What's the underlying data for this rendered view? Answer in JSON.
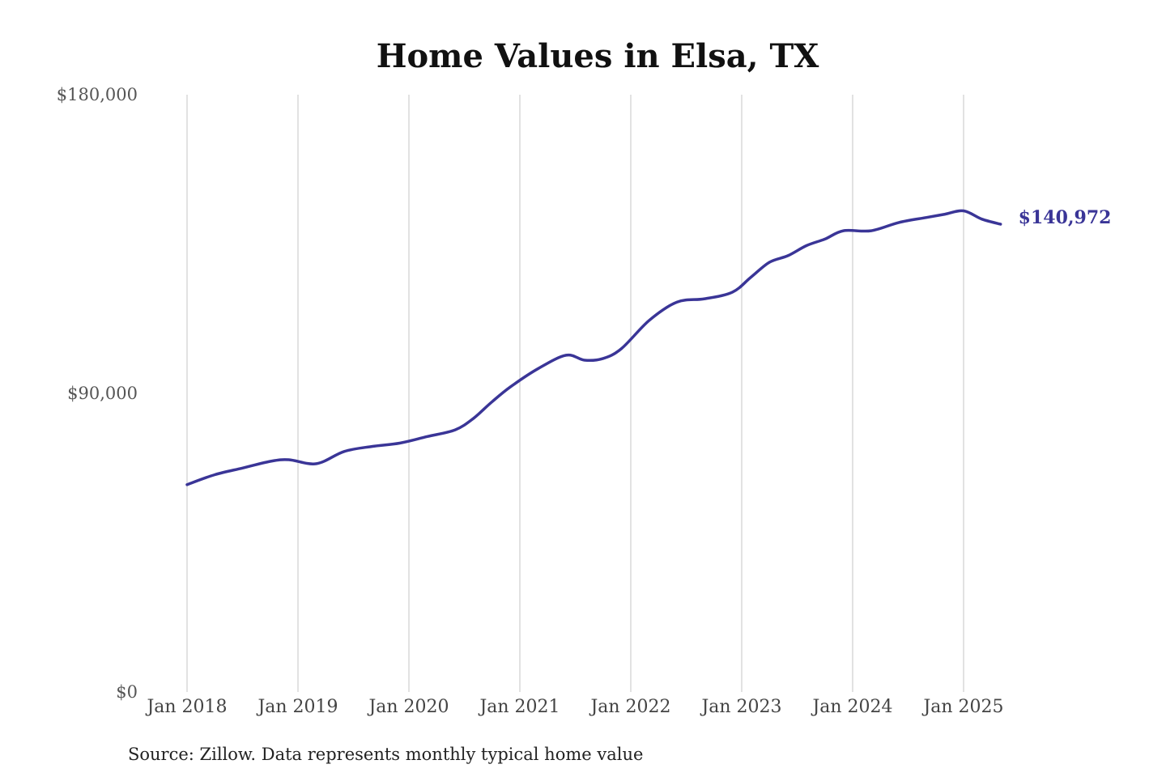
{
  "chart_data": {
    "type": "line",
    "title": "Home Values in Elsa, TX",
    "xlabel": "",
    "ylabel": "",
    "ylim": [
      0,
      180000
    ],
    "ytick_values": [
      0,
      90000,
      180000
    ],
    "ytick_labels": [
      "$0",
      "$90,000",
      "$180,000"
    ],
    "xtick_values": [
      "2018-01",
      "2019-01",
      "2020-01",
      "2021-01",
      "2022-01",
      "2023-01",
      "2024-01",
      "2025-01"
    ],
    "xtick_labels": [
      "Jan 2018",
      "Jan 2019",
      "Jan 2020",
      "Jan 2021",
      "Jan 2022",
      "Jan 2023",
      "Jan 2024",
      "Jan 2025"
    ],
    "grid": "vertical",
    "line_color": "#3a3597",
    "end_label": "$140,972",
    "source": "Source: Zillow. Data represents monthly typical home value",
    "series": [
      {
        "x": [
          "2018-01",
          "2018-04",
          "2018-07",
          "2018-10",
          "2018-12",
          "2019-03",
          "2019-06",
          "2019-09",
          "2019-12",
          "2020-03",
          "2020-06",
          "2020-08",
          "2020-10",
          "2020-12",
          "2021-03",
          "2021-06",
          "2021-08",
          "2021-10",
          "2021-12",
          "2022-03",
          "2022-06",
          "2022-09",
          "2022-12",
          "2023-02",
          "2023-04",
          "2023-06",
          "2023-08",
          "2023-10",
          "2023-12",
          "2024-03",
          "2024-06",
          "2024-09",
          "2024-11",
          "2025-01",
          "2025-03",
          "2025-05"
        ],
        "values": [
          62500,
          65500,
          67500,
          69500,
          70000,
          68800,
          72500,
          74000,
          75000,
          77000,
          79000,
          82500,
          87500,
          92000,
          97500,
          101500,
          100000,
          100500,
          103500,
          112000,
          117500,
          118500,
          120500,
          125000,
          129500,
          131500,
          134500,
          136500,
          139000,
          139000,
          141500,
          143000,
          144000,
          145000,
          142500,
          140972
        ]
      }
    ]
  }
}
